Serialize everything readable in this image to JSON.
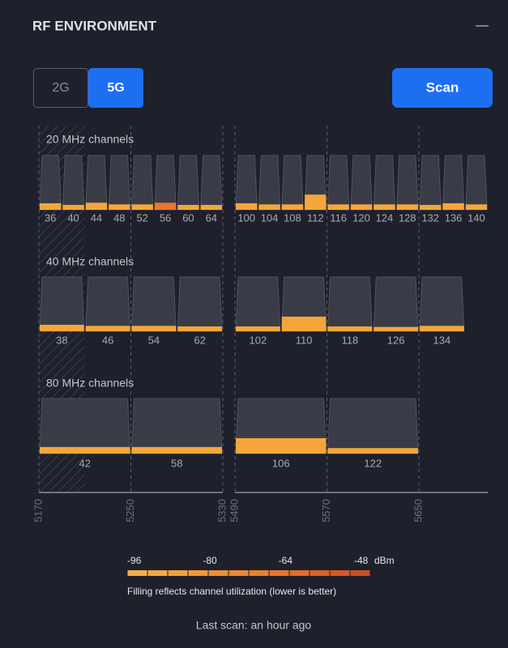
{
  "header": {
    "title": "RF ENVIRONMENT"
  },
  "tabs": {
    "items": [
      "2G",
      "5G"
    ],
    "active_index": 1
  },
  "scan_button": "Scan",
  "groups": [
    {
      "label": "20 MHz channels",
      "bandwidth": 20,
      "channels": [
        {
          "channel": 36,
          "utilization": 12,
          "color": "#f5a63a"
        },
        {
          "channel": 40,
          "utilization": 9,
          "color": "#f5a63a"
        },
        {
          "channel": 44,
          "utilization": 13,
          "color": "#f5a63a"
        },
        {
          "channel": 48,
          "utilization": 10,
          "color": "#f5a63a"
        },
        {
          "channel": 52,
          "utilization": 10,
          "color": "#f5a63a"
        },
        {
          "channel": 56,
          "utilization": 13,
          "color": "#e8782e"
        },
        {
          "channel": 60,
          "utilization": 9,
          "color": "#f5a63a"
        },
        {
          "channel": 64,
          "utilization": 9,
          "color": "#f5a63a"
        },
        {
          "channel": 100,
          "utilization": 12,
          "color": "#f5a63a"
        },
        {
          "channel": 104,
          "utilization": 10,
          "color": "#f5a63a"
        },
        {
          "channel": 108,
          "utilization": 10,
          "color": "#f5a63a"
        },
        {
          "channel": 112,
          "utilization": 28,
          "color": "#f5a63a"
        },
        {
          "channel": 116,
          "utilization": 10,
          "color": "#f5a63a"
        },
        {
          "channel": 120,
          "utilization": 10,
          "color": "#f5a63a"
        },
        {
          "channel": 124,
          "utilization": 10,
          "color": "#f5a63a"
        },
        {
          "channel": 128,
          "utilization": 10,
          "color": "#f5a63a"
        },
        {
          "channel": 132,
          "utilization": 9,
          "color": "#f5a63a"
        },
        {
          "channel": 136,
          "utilization": 12,
          "color": "#f5a63a"
        },
        {
          "channel": 140,
          "utilization": 10,
          "color": "#f5a63a"
        }
      ]
    },
    {
      "label": "40 MHz channels",
      "bandwidth": 40,
      "channels": [
        {
          "channel": 38,
          "utilization": 12,
          "color": "#f5a63a"
        },
        {
          "channel": 46,
          "utilization": 10,
          "color": "#f5a63a"
        },
        {
          "channel": 54,
          "utilization": 10,
          "color": "#f5a63a"
        },
        {
          "channel": 62,
          "utilization": 9,
          "color": "#f5a63a"
        },
        {
          "channel": 102,
          "utilization": 9,
          "color": "#f5a63a"
        },
        {
          "channel": 110,
          "utilization": 27,
          "color": "#f5a63a"
        },
        {
          "channel": 118,
          "utilization": 9,
          "color": "#f5a63a"
        },
        {
          "channel": 126,
          "utilization": 8,
          "color": "#f5a63a"
        },
        {
          "channel": 134,
          "utilization": 10,
          "color": "#f5a63a"
        }
      ]
    },
    {
      "label": "80 MHz channels",
      "bandwidth": 80,
      "channels": [
        {
          "channel": 42,
          "utilization": 12,
          "color": "#f5a63a"
        },
        {
          "channel": 58,
          "utilization": 12,
          "color": "#f5a63a"
        },
        {
          "channel": 106,
          "utilization": 28,
          "color": "#f5a63a"
        },
        {
          "channel": 122,
          "utilization": 10,
          "color": "#f5a63a"
        }
      ]
    }
  ],
  "axis": {
    "segments": [
      [
        5170,
        5330
      ],
      [
        5490,
        5710
      ]
    ],
    "ticks": [
      5170,
      5250,
      5330,
      5490,
      5570,
      5650
    ]
  },
  "legend": {
    "ticks": [
      -96,
      -80,
      -64,
      -48
    ],
    "unit": "dBm",
    "colors": [
      "#f7b04a",
      "#f5a843",
      "#f3a03e",
      "#f19839",
      "#ee9035",
      "#ec8831",
      "#e8802e",
      "#e4772b",
      "#df6e29",
      "#d96427",
      "#d25a26",
      "#c94f25"
    ],
    "note": "Filling reflects channel utilization (lower is better)"
  },
  "footer": "Last scan: an hour ago"
}
